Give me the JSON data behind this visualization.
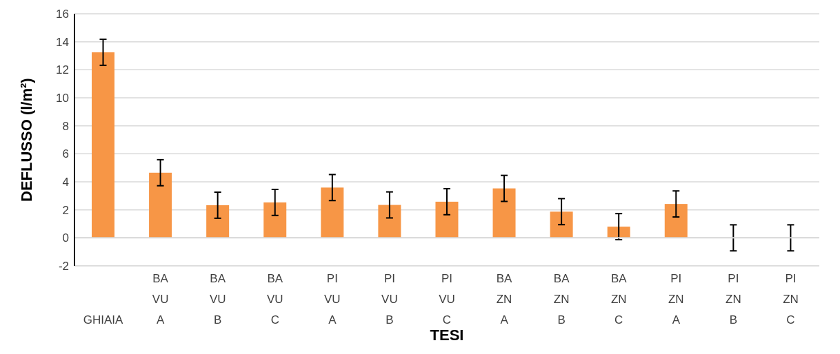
{
  "chart_data": {
    "type": "bar",
    "xlabel": "TESI",
    "ylabel": "DEFLUSSO (l/m²)",
    "categories": [
      "GHIAIA",
      "BA\nVU\nA",
      "BA\nVU\nB",
      "BA\nVU\nC",
      "PI\nVU\nA",
      "PI\nVU\nB",
      "PI\nVU\nC",
      "BA\nZN\nA",
      "BA\nZN\nB",
      "BA\nZN\nC",
      "PI\nZN\nA",
      "PI\nZN\nB",
      "PI\nZN\nC"
    ],
    "values": [
      13.25,
      4.65,
      2.33,
      2.53,
      3.59,
      2.35,
      2.58,
      3.53,
      1.87,
      0.8,
      2.42,
      0,
      0
    ],
    "errors": [
      0.93,
      0.93,
      0.93,
      0.93,
      0.93,
      0.93,
      0.93,
      0.93,
      0.93,
      0.93,
      0.93,
      0.93,
      0.93
    ],
    "color": "#f79646",
    "ylim": [
      -2,
      16
    ],
    "yticks": [
      -2,
      0,
      2,
      4,
      6,
      8,
      10,
      12,
      14,
      16
    ],
    "grid": "y",
    "legend": false
  }
}
